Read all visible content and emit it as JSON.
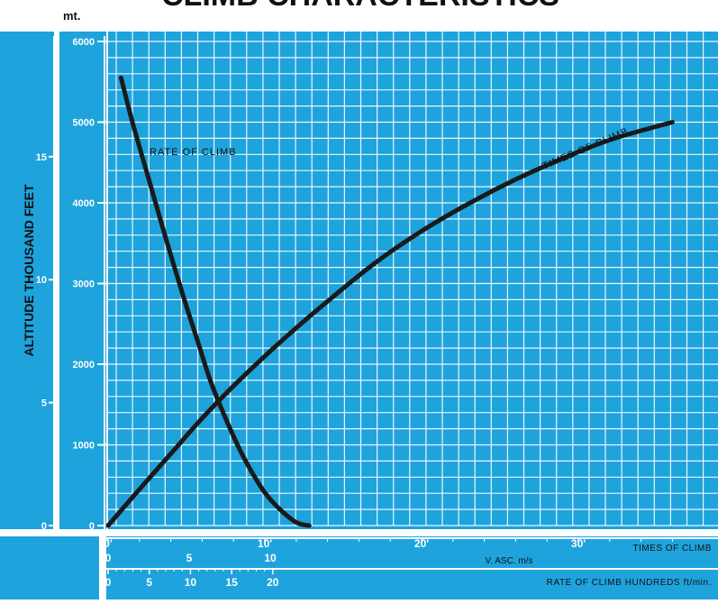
{
  "header": {
    "title_partial": "CLIMB  CHARACTERISTICS",
    "unit_mt": "mt."
  },
  "colors": {
    "background": "#ffffff",
    "panel": "#1ea3dc",
    "grid": "#ffffff",
    "curve": "#1a1a1a"
  },
  "chart_data": {
    "type": "line",
    "title": "",
    "ylabel": "ALTITUDE THOUSAND FEET",
    "y_meters": {
      "ticks": [
        0,
        1000,
        2000,
        3000,
        4000,
        5000,
        6000
      ],
      "labels": [
        "0",
        "1000",
        "2000",
        "3000",
        "4000",
        "5000",
        "6000"
      ],
      "range": [
        0,
        6000
      ]
    },
    "y_feet": {
      "ticks": [
        0,
        5,
        10,
        15
      ],
      "labels": [
        "0",
        "5",
        "10",
        "15"
      ]
    },
    "x_time": {
      "label": "TIMES OF CLIMB",
      "ticks": [
        0,
        10,
        20,
        30
      ],
      "labels": [
        "0'",
        "10'",
        "20'",
        "30'"
      ],
      "range": [
        0,
        36
      ]
    },
    "x_vasc": {
      "label": "V. ASC. m/s",
      "ticks": [
        0,
        5,
        10
      ],
      "labels": [
        "0",
        "5",
        "10"
      ]
    },
    "x_rate": {
      "label": "RATE OF CLIMB HUNDREDS ft/min.",
      "ticks": [
        0,
        5,
        10,
        15,
        20
      ],
      "labels": [
        "0",
        "5",
        "10",
        "15",
        "20"
      ]
    },
    "series": [
      {
        "name": "TIMES OF CLIMB",
        "x_unit": "min",
        "x": [
          0,
          2,
          4,
          6,
          8,
          10,
          12,
          14,
          17,
          20,
          23,
          26,
          29,
          32,
          36
        ],
        "y": [
          0,
          450,
          890,
          1330,
          1730,
          2100,
          2450,
          2780,
          3250,
          3650,
          3990,
          4290,
          4550,
          4780,
          5000
        ]
      },
      {
        "name": "RATE OF CLIMB",
        "x_unit": "m/s",
        "x": [
          0.8,
          1.5,
          2.5,
          3.5,
          4.7,
          5.5,
          6.3,
          7.2,
          8.1,
          8.9,
          9.7,
          10.6,
          11.6,
          12.4
        ],
        "y": [
          5550,
          5000,
          4300,
          3600,
          2800,
          2300,
          1800,
          1350,
          950,
          650,
          400,
          200,
          40,
          0
        ]
      }
    ]
  }
}
